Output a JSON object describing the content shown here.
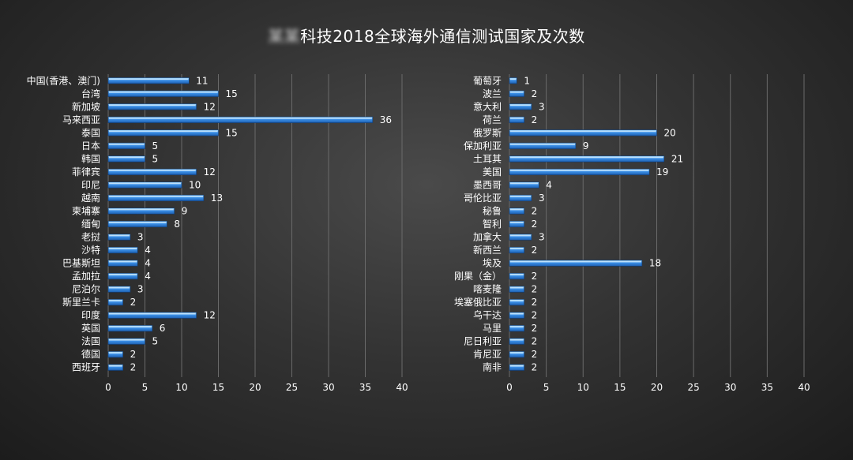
{
  "title_brand": "某某",
  "title_main": "科技2018全球海外通信测试国家及次数",
  "colors": {
    "bar_light": "#9fd8ff",
    "bar_mid": "#3a8ee6",
    "bar_dark": "#1d5fb0",
    "grid": "#6a6a6a",
    "text": "#ffffff"
  },
  "chart_data": [
    {
      "type": "bar",
      "orientation": "horizontal",
      "categories": [
        "中国(香港、澳门)",
        "台湾",
        "新加坡",
        "马来西亚",
        "泰国",
        "日本",
        "韩国",
        "菲律宾",
        "印尼",
        "越南",
        "柬埔寨",
        "缅甸",
        "老挝",
        "沙特",
        "巴基斯坦",
        "孟加拉",
        "尼泊尔",
        "斯里兰卡",
        "印度",
        "英国",
        "法国",
        "德国",
        "西班牙"
      ],
      "values": [
        11,
        15,
        12,
        36,
        15,
        5,
        5,
        12,
        10,
        13,
        9,
        8,
        3,
        4,
        4,
        4,
        3,
        2,
        12,
        6,
        5,
        2,
        2
      ],
      "xlim": [
        0,
        40
      ],
      "xticks": [
        0,
        5,
        10,
        15,
        20,
        25,
        30,
        35,
        40
      ],
      "grid": true
    },
    {
      "type": "bar",
      "orientation": "horizontal",
      "categories": [
        "葡萄牙",
        "波兰",
        "意大利",
        "荷兰",
        "俄罗斯",
        "保加利亚",
        "土耳其",
        "美国",
        "墨西哥",
        "哥伦比亚",
        "秘鲁",
        "智利",
        "加拿大",
        "新西兰",
        "埃及",
        "刚果（金）",
        "喀麦隆",
        "埃塞俄比亚",
        "乌干达",
        "马里",
        "尼日利亚",
        "肯尼亚",
        "南非"
      ],
      "values": [
        1,
        2,
        3,
        2,
        20,
        9,
        21,
        19,
        4,
        3,
        2,
        2,
        3,
        2,
        18,
        2,
        2,
        2,
        2,
        2,
        2,
        2,
        2
      ],
      "xlim": [
        0,
        40
      ],
      "xticks": [
        0,
        5,
        10,
        15,
        20,
        25,
        30,
        35,
        40
      ],
      "grid": true
    }
  ]
}
